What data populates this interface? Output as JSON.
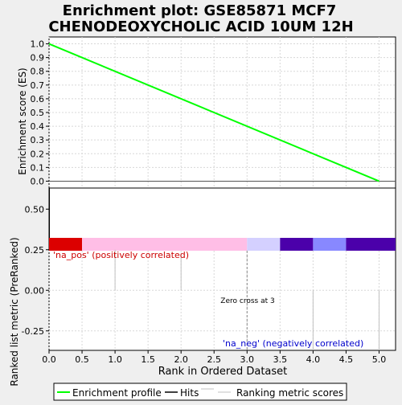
{
  "chart_data": {
    "type": "line",
    "title_line1": "Enrichment plot: GSE85871 MCF7",
    "title_line2": "CHENODEOXYCHOLIC ACID 10UM 12H",
    "es_panel": {
      "ylabel": "Enrichment score (ES)",
      "ylim": [
        -0.05,
        1.05
      ],
      "yticks": [
        "1.0",
        "0.9",
        "0.8",
        "0.7",
        "0.6",
        "0.5",
        "0.4",
        "0.3",
        "0.2",
        "0.1",
        "0.0"
      ],
      "series": [
        {
          "x": [
            0.0,
            5.0
          ],
          "y": [
            1.0,
            0.0
          ]
        }
      ],
      "line_color": "#00ff00"
    },
    "hits": {
      "x": [
        0
      ]
    },
    "color_bar": [
      {
        "x0": 0.0,
        "x1": 0.5,
        "color": "#dc0000"
      },
      {
        "x0": 0.5,
        "x1": 3.0,
        "color": "#ffbee6"
      },
      {
        "x0": 3.0,
        "x1": 3.5,
        "color": "#d4d0ff"
      },
      {
        "x0": 3.5,
        "x1": 4.0,
        "color": "#4b00aa"
      },
      {
        "x0": 4.0,
        "x1": 4.5,
        "color": "#8888ff"
      },
      {
        "x0": 4.5,
        "x1": 5.25,
        "color": "#4b00aa"
      }
    ],
    "rank_panel": {
      "ylabel": "Ranked list metric (PreRanked)",
      "ylim": [
        -0.37,
        0.63
      ],
      "yticks": [
        "0.50",
        "0.25",
        "0.00",
        "-0.25"
      ],
      "bars": [
        {
          "x": 1.0,
          "y": 0.25
        },
        {
          "x": 2.0,
          "y": 0.23
        },
        {
          "x": 4.0,
          "y": -0.37
        },
        {
          "x": 5.0,
          "y": -0.37
        }
      ],
      "pos_label": "'na_pos' (positively correlated)",
      "neg_label": "'na_neg' (negatively correlated)",
      "zero_cross_label": "Zero cross at 3",
      "zero_cross_x": 3.0,
      "pos_color": "#cc0000",
      "neg_color": "#0000cc"
    },
    "xlabel": "Rank in Ordered Dataset",
    "xlim": [
      0,
      5.25
    ],
    "xticks": [
      "0.0",
      "0.5",
      "1.0",
      "1.5",
      "2.0",
      "2.5",
      "3.0",
      "3.5",
      "4.0",
      "4.5",
      "5.0"
    ],
    "legend": {
      "placement": "bottom",
      "items": [
        {
          "label": "Enrichment profile",
          "color": "#00ff00"
        },
        {
          "label": "Hits",
          "color": "#000000"
        },
        {
          "label": "Ranking metric scores",
          "color": "#c0c0c0"
        }
      ]
    }
  }
}
